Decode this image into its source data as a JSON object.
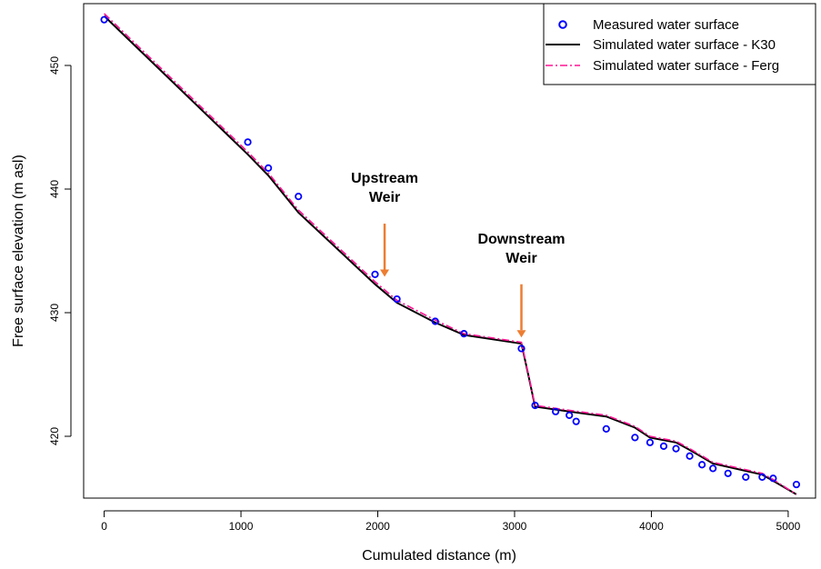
{
  "chart_data": {
    "type": "scatter",
    "title": "",
    "xlabel": "Cumulated distance (m)",
    "ylabel": "Free surface elevation (m asl)",
    "xlim": [
      -150,
      5200
    ],
    "ylim": [
      415,
      455
    ],
    "xticks": [
      0,
      1000,
      2000,
      3000,
      4000,
      5000
    ],
    "yticks": [
      420,
      430,
      440,
      450
    ],
    "grid": false,
    "legend_position": "top-right",
    "colors": {
      "measured": "#0000ff",
      "k30": "#000000",
      "ferg": "#ff1493",
      "arrow": "#ed7d31"
    },
    "series": [
      {
        "name": "Measured water surface",
        "style": "points",
        "x": [
          0,
          1050,
          1200,
          1420,
          1980,
          2140,
          2420,
          2630,
          3050,
          3150,
          3300,
          3400,
          3450,
          3670,
          3880,
          3990,
          4090,
          4180,
          4280,
          4370,
          4450,
          4560,
          4690,
          4810,
          4890,
          5060
        ],
        "y": [
          453.7,
          443.8,
          441.7,
          439.4,
          433.1,
          431.1,
          429.3,
          428.3,
          427.1,
          422.5,
          422.0,
          421.7,
          421.2,
          420.6,
          419.9,
          419.5,
          419.2,
          419.0,
          418.4,
          417.7,
          417.4,
          417.0,
          416.7,
          416.7,
          416.6,
          416.1
        ]
      },
      {
        "name": "Simulated water surface - K30",
        "style": "line",
        "x": [
          0,
          1050,
          1200,
          1420,
          1980,
          2140,
          2420,
          2630,
          3050,
          3100,
          3150,
          3400,
          3670,
          3880,
          3990,
          4180,
          4280,
          4450,
          4810,
          4890,
          5060
        ],
        "y": [
          454.0,
          442.8,
          441.1,
          438.1,
          432.3,
          430.8,
          429.2,
          428.2,
          427.5,
          425.0,
          422.4,
          422.0,
          421.6,
          420.7,
          419.9,
          419.5,
          418.9,
          417.8,
          416.9,
          416.4,
          415.3
        ]
      },
      {
        "name": "Simulated water surface - Ferg",
        "style": "dashed-line",
        "x": [
          0,
          1050,
          1200,
          1420,
          1980,
          2140,
          2420,
          2630,
          3050,
          3100,
          3150,
          3400,
          3670,
          3880,
          3990,
          4180,
          4280,
          4450,
          4810,
          4890,
          5060
        ],
        "y": [
          454.2,
          443.0,
          441.3,
          438.3,
          432.5,
          431.0,
          429.4,
          428.3,
          427.6,
          425.1,
          422.5,
          422.1,
          421.7,
          420.8,
          420.0,
          419.6,
          419.0,
          417.9,
          417.0,
          416.5,
          415.3
        ]
      }
    ],
    "annotations": [
      {
        "lines": [
          "Upstream",
          "Weir"
        ],
        "x": 2050,
        "y_tip": 432.9,
        "y_tail": 437.2,
        "label_y": 440.5
      },
      {
        "lines": [
          "Downstream",
          "Weir"
        ],
        "x": 3050,
        "y_tip": 428.0,
        "y_tail": 432.3,
        "label_y": 435.6
      }
    ]
  }
}
